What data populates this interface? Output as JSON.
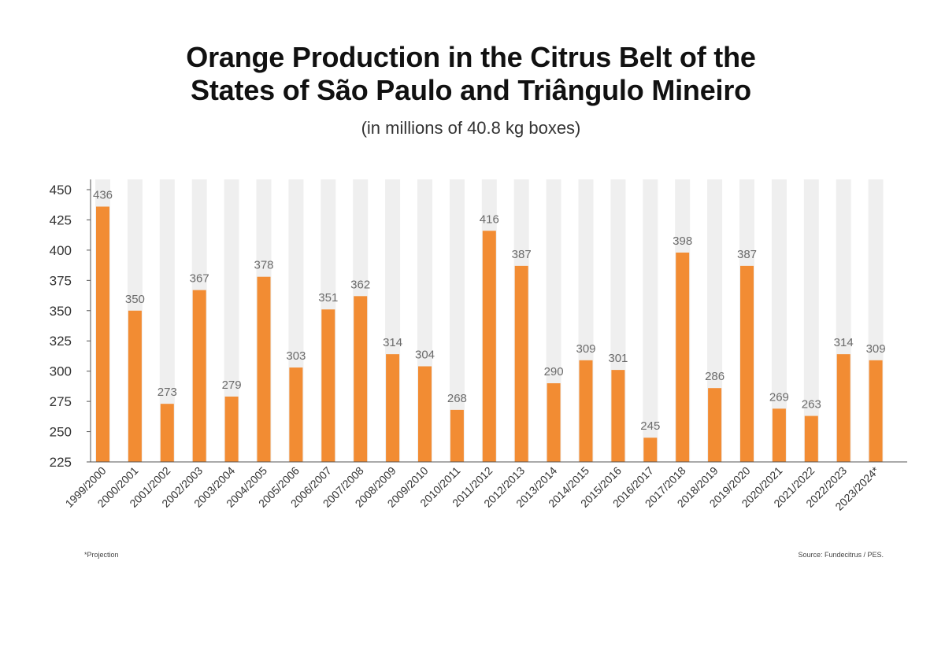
{
  "title_line1": "Orange Production in the Citrus Belt of the",
  "title_line2": "States of São Paulo and Triângulo Mineiro",
  "subtitle": "(in millions of 40.8 kg boxes)",
  "footnote": "*Projection",
  "source": "Source: Fundecitrus / PES.",
  "colors": {
    "bar": "#f28c33",
    "background_band": "#efefef",
    "label": "#6b6b6b",
    "axis": "#555555"
  },
  "chart_data": {
    "type": "bar",
    "categories": [
      "1999/2000",
      "2000/2001",
      "2001/2002",
      "2002/2003",
      "2003/2004",
      "2004/2005",
      "2005/2006",
      "2006/2007",
      "2007/2008",
      "2008/2009",
      "2009/2010",
      "2010/2011",
      "2011/2012",
      "2012/2013",
      "2013/2014",
      "2014/2015",
      "2015/2016",
      "2016/2017",
      "2017/2018",
      "2018/2019",
      "2019/2020",
      "2020/2021",
      "2021/2022",
      "2022/2023",
      "2023/2024*"
    ],
    "values": [
      436,
      350,
      273,
      367,
      279,
      378,
      303,
      351,
      362,
      314,
      304,
      268,
      416,
      387,
      290,
      309,
      301,
      245,
      398,
      286,
      387,
      269,
      263,
      314,
      309
    ],
    "ylim": [
      225,
      450
    ],
    "yticks": [
      225,
      250,
      275,
      300,
      325,
      350,
      375,
      400,
      425,
      450
    ],
    "grid": false,
    "legend": "none"
  }
}
